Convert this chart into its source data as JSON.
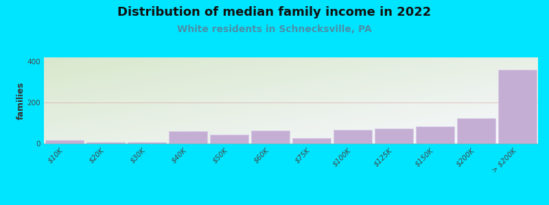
{
  "title": "Distribution of median family income in 2022",
  "subtitle": "White residents in Schnecksville, PA",
  "categories": [
    "$10K",
    "$20K",
    "$30K",
    "$40K",
    "$50K",
    "$60K",
    "$75K",
    "$100K",
    "$125K",
    "$150K",
    "$200K",
    "> $200K"
  ],
  "values": [
    18,
    8,
    8,
    60,
    45,
    65,
    28,
    68,
    75,
    85,
    125,
    360
  ],
  "bar_color": "#c4aed4",
  "bar_edge_color": "#d8cce8",
  "background_color": "#00e5ff",
  "plot_bg_top_left": "#d8e8cc",
  "plot_bg_bottom_right": "#f0f0f8",
  "title_fontsize": 13,
  "subtitle_fontsize": 10,
  "subtitle_color": "#4a8fa8",
  "ylabel": "families",
  "ylabel_fontsize": 9,
  "tick_fontsize": 7.5,
  "ylim": [
    0,
    420
  ],
  "yticks": [
    0,
    200,
    400
  ],
  "grid_color": "#d4a0a0",
  "grid_alpha": 0.6,
  "figsize": [
    8.0,
    3.0
  ],
  "dpi": 100
}
